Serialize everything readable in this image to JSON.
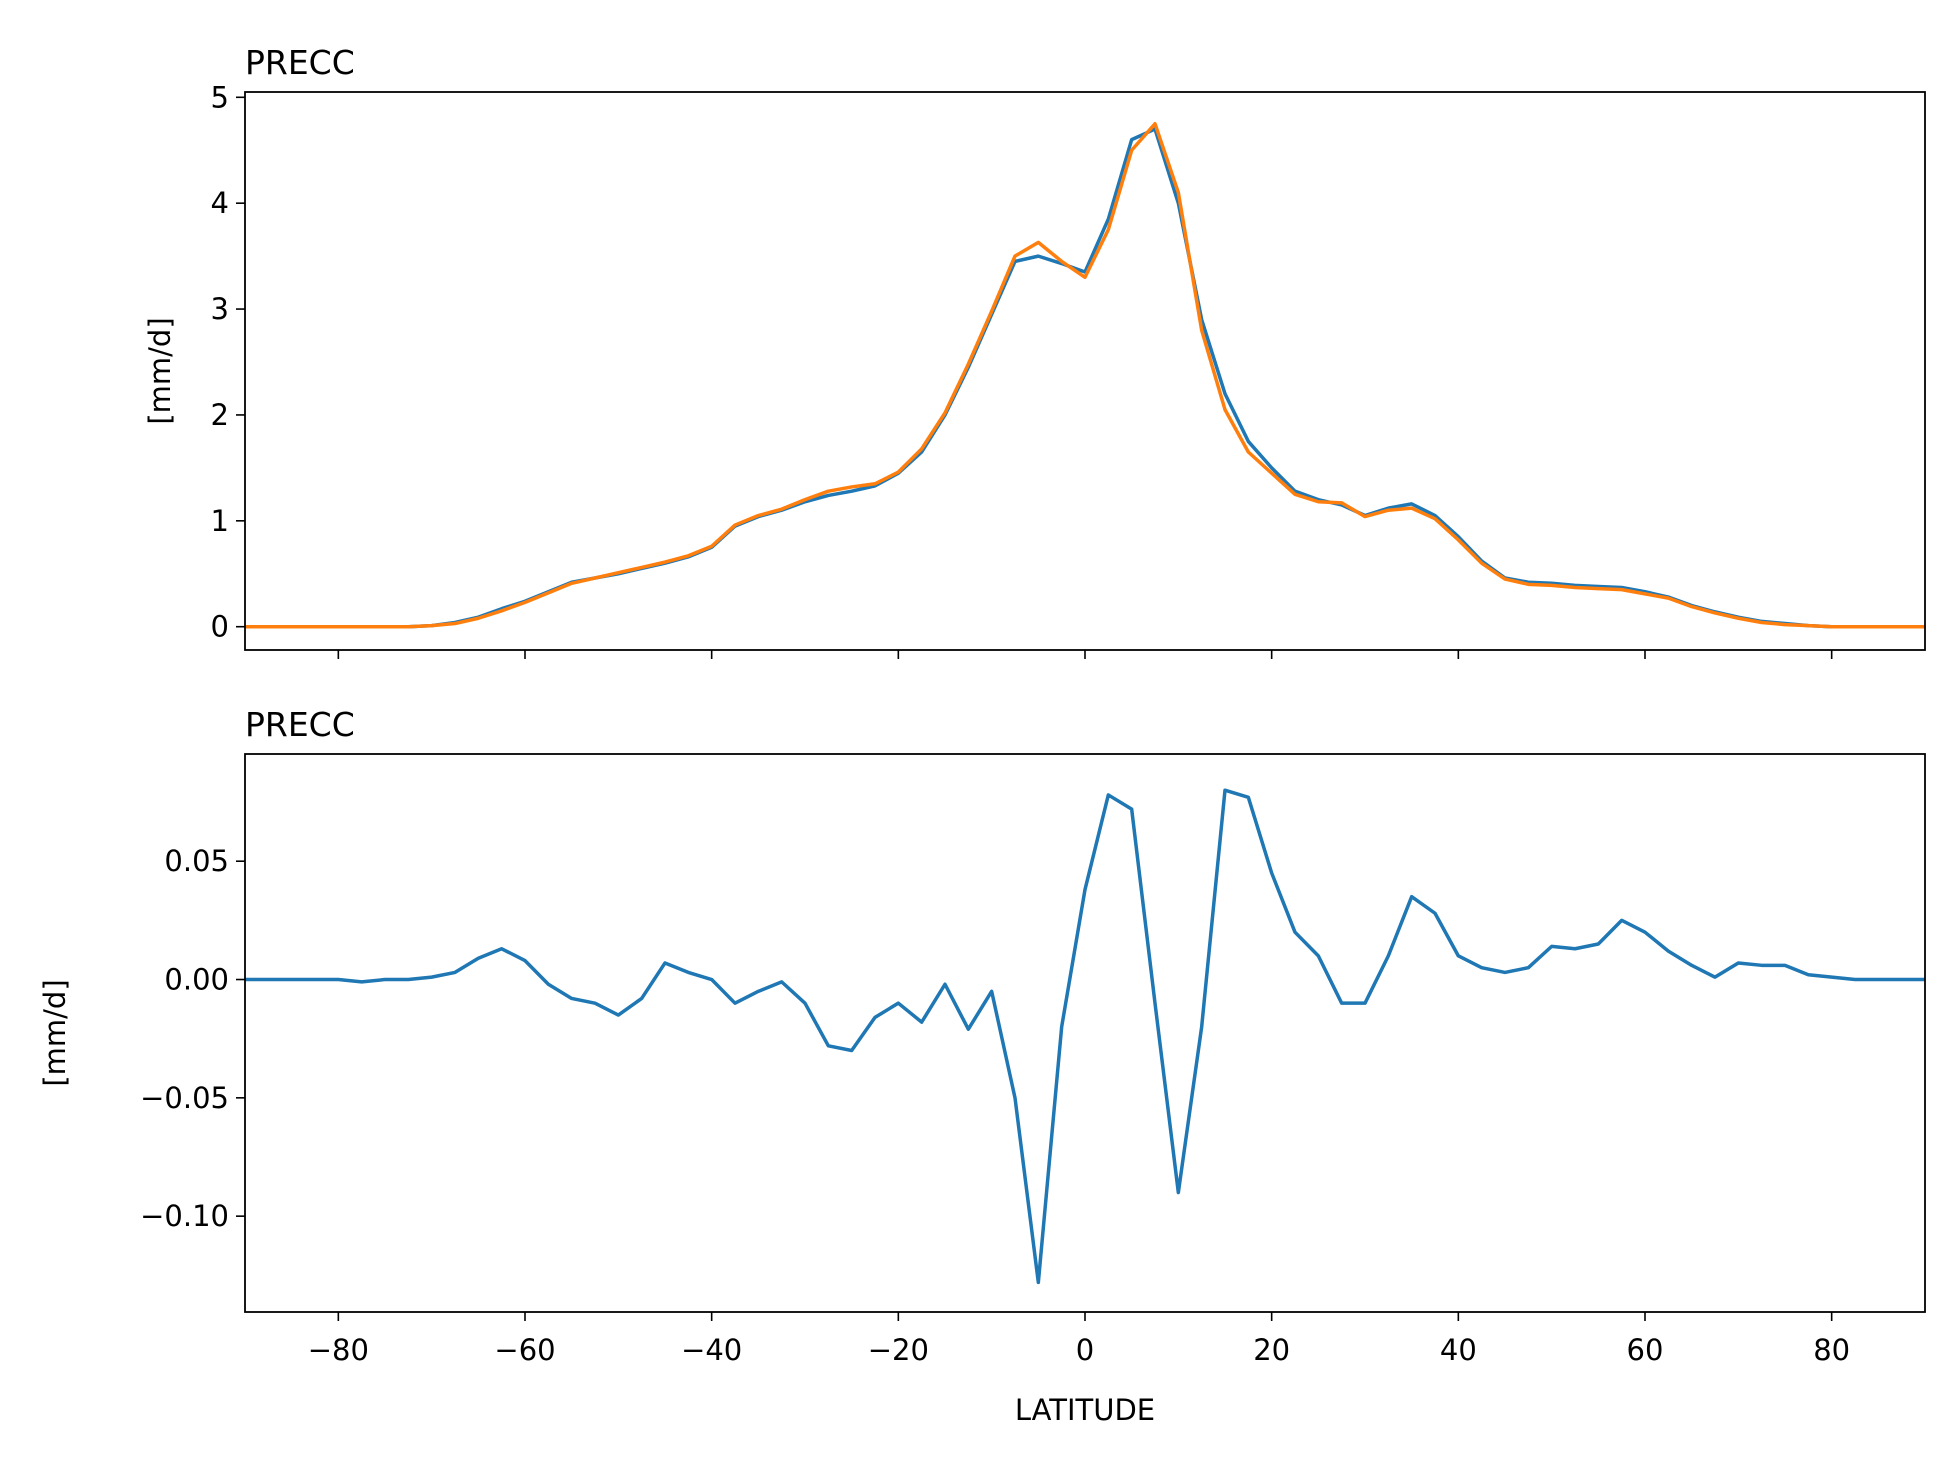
{
  "chart_data": [
    {
      "type": "line",
      "title": "PRECC",
      "ylabel": "[mm/d]",
      "x": [
        -90,
        -87.5,
        -85,
        -82.5,
        -80,
        -77.5,
        -75,
        -72.5,
        -70,
        -67.5,
        -65,
        -62.5,
        -60,
        -57.5,
        -55,
        -52.5,
        -50,
        -47.5,
        -45,
        -42.5,
        -40,
        -37.5,
        -35,
        -32.5,
        -30,
        -27.5,
        -25,
        -22.5,
        -20,
        -17.5,
        -15,
        -12.5,
        -10,
        -7.5,
        -5,
        -2.5,
        0,
        2.5,
        5,
        7.5,
        10,
        12.5,
        15,
        17.5,
        20,
        22.5,
        25,
        27.5,
        30,
        32.5,
        35,
        37.5,
        40,
        42.5,
        45,
        47.5,
        50,
        52.5,
        55,
        57.5,
        60,
        62.5,
        65,
        67.5,
        70,
        72.5,
        75,
        77.5,
        80,
        82.5,
        85,
        87.5,
        90
      ],
      "series": [
        {
          "color": "#1f77b4",
          "values": [
            0,
            0,
            0,
            0,
            0,
            0,
            0,
            0,
            0.01,
            0.04,
            0.09,
            0.17,
            0.24,
            0.33,
            0.42,
            0.46,
            0.5,
            0.55,
            0.6,
            0.66,
            0.75,
            0.95,
            1.04,
            1.1,
            1.18,
            1.24,
            1.28,
            1.33,
            1.45,
            1.65,
            2.0,
            2.45,
            2.95,
            3.45,
            3.5,
            3.43,
            3.35,
            3.85,
            4.6,
            4.7,
            4.0,
            2.9,
            2.2,
            1.75,
            1.5,
            1.28,
            1.2,
            1.15,
            1.05,
            1.12,
            1.16,
            1.05,
            0.85,
            0.62,
            0.46,
            0.42,
            0.41,
            0.39,
            0.38,
            0.37,
            0.33,
            0.28,
            0.2,
            0.14,
            0.09,
            0.05,
            0.03,
            0.01,
            0,
            0,
            0,
            0,
            0
          ]
        },
        {
          "color": "#ff7f0e",
          "values": [
            0,
            0,
            0,
            0,
            0,
            0,
            0,
            0,
            0.01,
            0.03,
            0.08,
            0.15,
            0.23,
            0.32,
            0.41,
            0.46,
            0.51,
            0.56,
            0.61,
            0.67,
            0.76,
            0.96,
            1.05,
            1.11,
            1.2,
            1.28,
            1.32,
            1.35,
            1.46,
            1.68,
            2.02,
            2.48,
            2.98,
            3.5,
            3.63,
            3.45,
            3.3,
            3.75,
            4.5,
            4.75,
            4.1,
            2.8,
            2.05,
            1.65,
            1.45,
            1.25,
            1.18,
            1.17,
            1.04,
            1.1,
            1.12,
            1.02,
            0.82,
            0.6,
            0.45,
            0.4,
            0.39,
            0.37,
            0.36,
            0.35,
            0.31,
            0.27,
            0.19,
            0.13,
            0.08,
            0.04,
            0.02,
            0.01,
            0,
            0,
            0,
            0,
            0
          ]
        }
      ],
      "xlim": [
        -90,
        90
      ],
      "xticks": [
        -80,
        -60,
        -40,
        -20,
        0,
        20,
        40,
        60,
        80
      ],
      "ylim": [
        -0.22,
        5.05
      ],
      "yticks": [
        0,
        1,
        2,
        3,
        4,
        5
      ]
    },
    {
      "type": "line",
      "title": "PRECC",
      "ylabel": "[mm/d]",
      "xlabel": "LATITUDE",
      "x": [
        -90,
        -87.5,
        -85,
        -82.5,
        -80,
        -77.5,
        -75,
        -72.5,
        -70,
        -67.5,
        -65,
        -62.5,
        -60,
        -57.5,
        -55,
        -52.5,
        -50,
        -47.5,
        -45,
        -42.5,
        -40,
        -37.5,
        -35,
        -32.5,
        -30,
        -27.5,
        -25,
        -22.5,
        -20,
        -17.5,
        -15,
        -12.5,
        -10,
        -7.5,
        -5,
        -2.5,
        0,
        2.5,
        5,
        7.5,
        10,
        12.5,
        15,
        17.5,
        20,
        22.5,
        25,
        27.5,
        30,
        32.5,
        35,
        37.5,
        40,
        42.5,
        45,
        47.5,
        50,
        52.5,
        55,
        57.5,
        60,
        62.5,
        65,
        67.5,
        70,
        72.5,
        75,
        77.5,
        80,
        82.5,
        85,
        87.5,
        90
      ],
      "series": [
        {
          "color": "#1f77b4",
          "values": [
            0,
            0,
            0,
            0,
            0,
            -0.001,
            0,
            0,
            0.001,
            0.003,
            0.009,
            0.013,
            0.008,
            -0.002,
            -0.008,
            -0.01,
            -0.015,
            -0.008,
            0.007,
            0.003,
            0,
            -0.01,
            -0.005,
            -0.001,
            -0.01,
            -0.028,
            -0.03,
            -0.016,
            -0.01,
            -0.018,
            -0.002,
            -0.021,
            -0.005,
            -0.05,
            -0.128,
            -0.02,
            0.038,
            0.078,
            0.072,
            -0.01,
            -0.09,
            -0.02,
            0.08,
            0.077,
            0.045,
            0.02,
            0.01,
            -0.01,
            -0.01,
            0.01,
            0.035,
            0.028,
            0.01,
            0.005,
            0.003,
            0.005,
            0.014,
            0.013,
            0.015,
            0.025,
            0.02,
            0.012,
            0.006,
            0.001,
            0.007,
            0.006,
            0.006,
            0.002,
            0.001,
            0,
            0,
            0,
            0
          ]
        }
      ],
      "xlim": [
        -90,
        90
      ],
      "xticks": [
        {
          "value": -80,
          "label": "−80"
        },
        {
          "value": -60,
          "label": "−60"
        },
        {
          "value": -40,
          "label": "−40"
        },
        {
          "value": -20,
          "label": "−20"
        },
        0,
        20,
        40,
        60,
        80
      ],
      "ylim": [
        -0.1405,
        0.0953
      ],
      "yticks": [
        {
          "value": -0.1,
          "label": "−0.10"
        },
        {
          "value": -0.05,
          "label": "−0.05"
        },
        {
          "value": 0,
          "label": "0.00"
        },
        {
          "value": 0.05,
          "label": "0.05"
        }
      ]
    }
  ]
}
